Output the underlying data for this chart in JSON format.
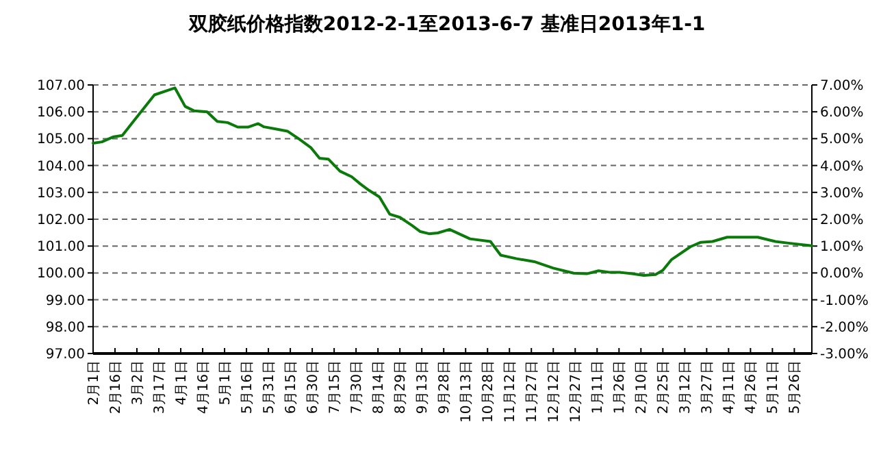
{
  "chart_data": {
    "type": "line",
    "title": "双胶纸价格指数2012-2-1至2013-6-7 基准日2013年1-1",
    "x": [
      "2012-02-01",
      "2012-02-07",
      "2012-02-15",
      "2012-02-21",
      "2012-03-03",
      "2012-03-14",
      "2012-03-28",
      "2012-04-04",
      "2012-04-10",
      "2012-04-19",
      "2012-04-26",
      "2012-05-03",
      "2012-05-10",
      "2012-05-17",
      "2012-05-24",
      "2012-05-28",
      "2012-06-05",
      "2012-06-13",
      "2012-06-21",
      "2012-06-29",
      "2012-07-05",
      "2012-07-11",
      "2012-07-19",
      "2012-07-27",
      "2012-08-02",
      "2012-08-08",
      "2012-08-15",
      "2012-08-22",
      "2012-08-29",
      "2012-09-06",
      "2012-09-12",
      "2012-09-18",
      "2012-09-24",
      "2012-10-02",
      "2012-10-16",
      "2012-10-30",
      "2012-11-06",
      "2012-11-17",
      "2012-11-29",
      "2012-12-12",
      "2012-12-26",
      "2013-01-04",
      "2013-01-12",
      "2013-01-20",
      "2013-01-27",
      "2013-02-04",
      "2013-02-12",
      "2013-02-20",
      "2013-02-25",
      "2013-03-03",
      "2013-03-16",
      "2013-03-23",
      "2013-03-31",
      "2013-04-10",
      "2013-05-01",
      "2013-05-13",
      "2013-05-22",
      "2013-06-07"
    ],
    "series": [
      {
        "color": "#0a7a0a",
        "values": [
          104.83,
          104.88,
          105.07,
          105.12,
          105.88,
          106.63,
          106.89,
          106.2,
          106.04,
          106.0,
          105.64,
          105.6,
          105.43,
          105.43,
          105.56,
          105.44,
          105.36,
          105.28,
          104.99,
          104.67,
          104.27,
          104.24,
          103.79,
          103.58,
          103.31,
          103.07,
          102.83,
          102.19,
          102.07,
          101.78,
          101.54,
          101.46,
          101.49,
          101.62,
          101.27,
          101.17,
          100.66,
          100.53,
          100.42,
          100.18,
          99.99,
          99.97,
          100.08,
          100.02,
          100.02,
          99.97,
          99.91,
          99.94,
          100.1,
          100.5,
          100.98,
          101.14,
          101.17,
          101.33,
          101.33,
          101.17,
          101.11,
          101.01
        ]
      }
    ],
    "xlim": [
      "2012-02-01",
      "2013-06-07"
    ],
    "xticks": [
      {
        "value": "2012-02-01",
        "label": "2月1日"
      },
      {
        "value": "2012-02-16",
        "label": "2月16日"
      },
      {
        "value": "2012-03-02",
        "label": "3月2日"
      },
      {
        "value": "2012-03-17",
        "label": "3月17日"
      },
      {
        "value": "2012-04-01",
        "label": "4月1日"
      },
      {
        "value": "2012-04-16",
        "label": "4月16日"
      },
      {
        "value": "2012-05-01",
        "label": "5月1日"
      },
      {
        "value": "2012-05-16",
        "label": "5月16日"
      },
      {
        "value": "2012-05-31",
        "label": "5月31日"
      },
      {
        "value": "2012-06-15",
        "label": "6月15日"
      },
      {
        "value": "2012-06-30",
        "label": "6月30日"
      },
      {
        "value": "2012-07-15",
        "label": "7月15日"
      },
      {
        "value": "2012-07-30",
        "label": "7月30日"
      },
      {
        "value": "2012-08-14",
        "label": "8月14日"
      },
      {
        "value": "2012-08-29",
        "label": "8月29日"
      },
      {
        "value": "2012-09-13",
        "label": "9月13日"
      },
      {
        "value": "2012-09-28",
        "label": "9月28日"
      },
      {
        "value": "2012-10-13",
        "label": "10月13日"
      },
      {
        "value": "2012-10-28",
        "label": "10月28日"
      },
      {
        "value": "2012-11-12",
        "label": "11月12日"
      },
      {
        "value": "2012-11-27",
        "label": "11月27日"
      },
      {
        "value": "2012-12-12",
        "label": "12月12日"
      },
      {
        "value": "2012-12-27",
        "label": "12月27日"
      },
      {
        "value": "2013-01-11",
        "label": "1月11日"
      },
      {
        "value": "2013-01-26",
        "label": "1月26日"
      },
      {
        "value": "2013-02-10",
        "label": "2月10日"
      },
      {
        "value": "2013-02-25",
        "label": "2月25日"
      },
      {
        "value": "2013-03-12",
        "label": "3月12日"
      },
      {
        "value": "2013-03-27",
        "label": "3月27日"
      },
      {
        "value": "2013-04-11",
        "label": "4月11日"
      },
      {
        "value": "2013-04-26",
        "label": "4月26日"
      },
      {
        "value": "2013-05-11",
        "label": "5月11日"
      },
      {
        "value": "2013-05-26",
        "label": "5月26日"
      }
    ],
    "ylim": [
      97,
      107
    ],
    "yticks": [
      {
        "value": 97,
        "label": "97.00"
      },
      {
        "value": 98,
        "label": "98.00"
      },
      {
        "value": 99,
        "label": "99.00"
      },
      {
        "value": 100,
        "label": "100.00"
      },
      {
        "value": 101,
        "label": "101.00"
      },
      {
        "value": 102,
        "label": "102.00"
      },
      {
        "value": 103,
        "label": "103.00"
      },
      {
        "value": 104,
        "label": "104.00"
      },
      {
        "value": 105,
        "label": "105.00"
      },
      {
        "value": 106,
        "label": "106.00"
      },
      {
        "value": 107,
        "label": "107.00"
      }
    ],
    "y2lim": [
      -3,
      7
    ],
    "y2ticks": [
      {
        "value": -3,
        "label": "-3.00%"
      },
      {
        "value": -2,
        "label": "-2.00%"
      },
      {
        "value": -1,
        "label": "-1.00%"
      },
      {
        "value": 0,
        "label": "0.00%"
      },
      {
        "value": 1,
        "label": "1.00%"
      },
      {
        "value": 2,
        "label": "2.00%"
      },
      {
        "value": 3,
        "label": "3.00%"
      },
      {
        "value": 4,
        "label": "4.00%"
      },
      {
        "value": 5,
        "label": "5.00%"
      },
      {
        "value": 6,
        "label": "6.00%"
      },
      {
        "value": 7,
        "label": "7.00%"
      }
    ],
    "grid": "y",
    "line_style": "solid"
  }
}
